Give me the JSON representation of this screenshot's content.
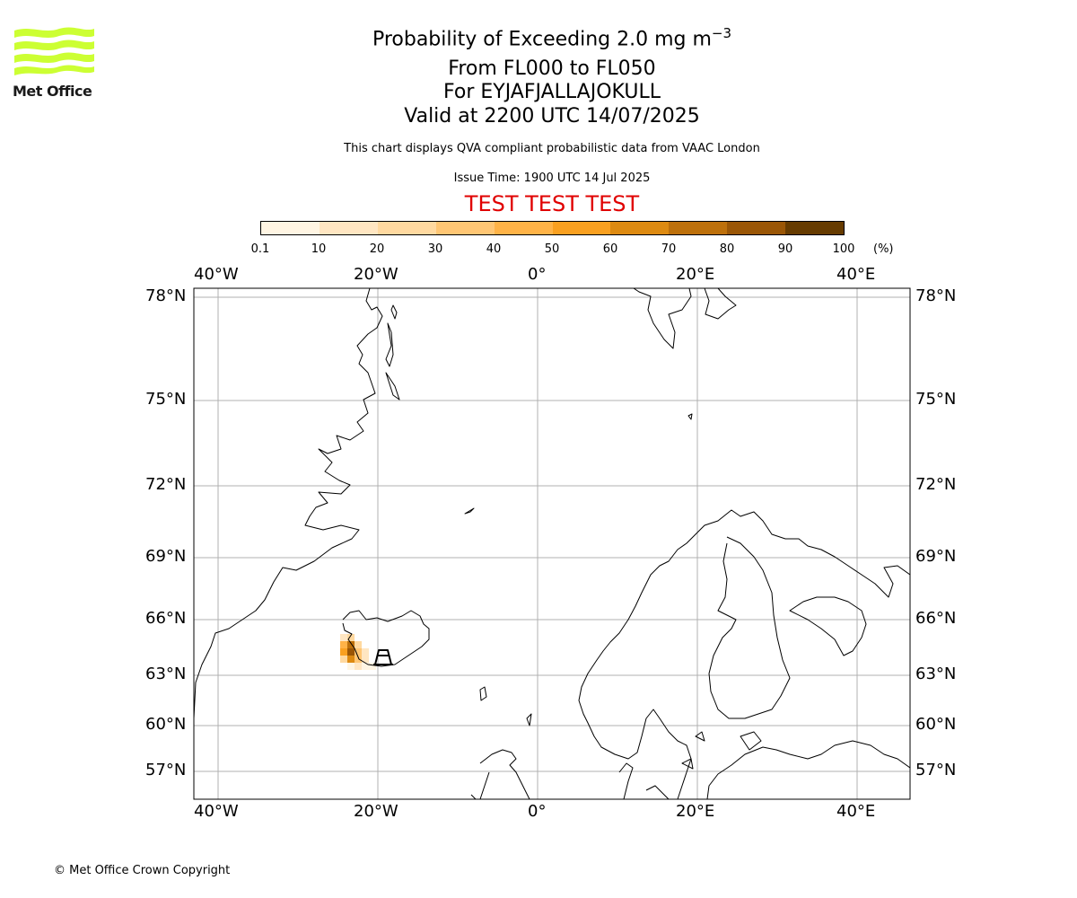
{
  "logo": {
    "text": "Met Office",
    "color": "#ccff33"
  },
  "title": {
    "main_prefix": "Probability of Exceeding 2.0 mg m",
    "main_exp": "−3",
    "levels": "From FL000 to FL050",
    "volcano": "For EYJAFJALLAJOKULL",
    "valid": "Valid at 2200 UTC 14/07/2025"
  },
  "subtitle": "This chart displays QVA compliant probabilistic data from VAAC London",
  "issue_time": "Issue Time: 1900 UTC 14 Jul 2025",
  "test_banner": "TEST TEST TEST",
  "colorbar": {
    "ticks": [
      "0.1",
      "10",
      "20",
      "30",
      "40",
      "50",
      "60",
      "70",
      "80",
      "90",
      "100"
    ],
    "unit": "(%)",
    "colors": [
      "#fff5e3",
      "#ffe6c2",
      "#ffd9a0",
      "#ffc674",
      "#ffb347",
      "#f9a020",
      "#dd8a11",
      "#bd700b",
      "#9a5606",
      "#663b00"
    ]
  },
  "map": {
    "lon_labels": [
      "40°W",
      "20°W",
      "0°",
      "20°E",
      "40°E"
    ],
    "lat_labels": [
      "78°N",
      "75°N",
      "72°N",
      "69°N",
      "66°N",
      "63°N",
      "60°N",
      "57°N"
    ]
  },
  "copyright": "© Met Office Crown Copyright"
}
